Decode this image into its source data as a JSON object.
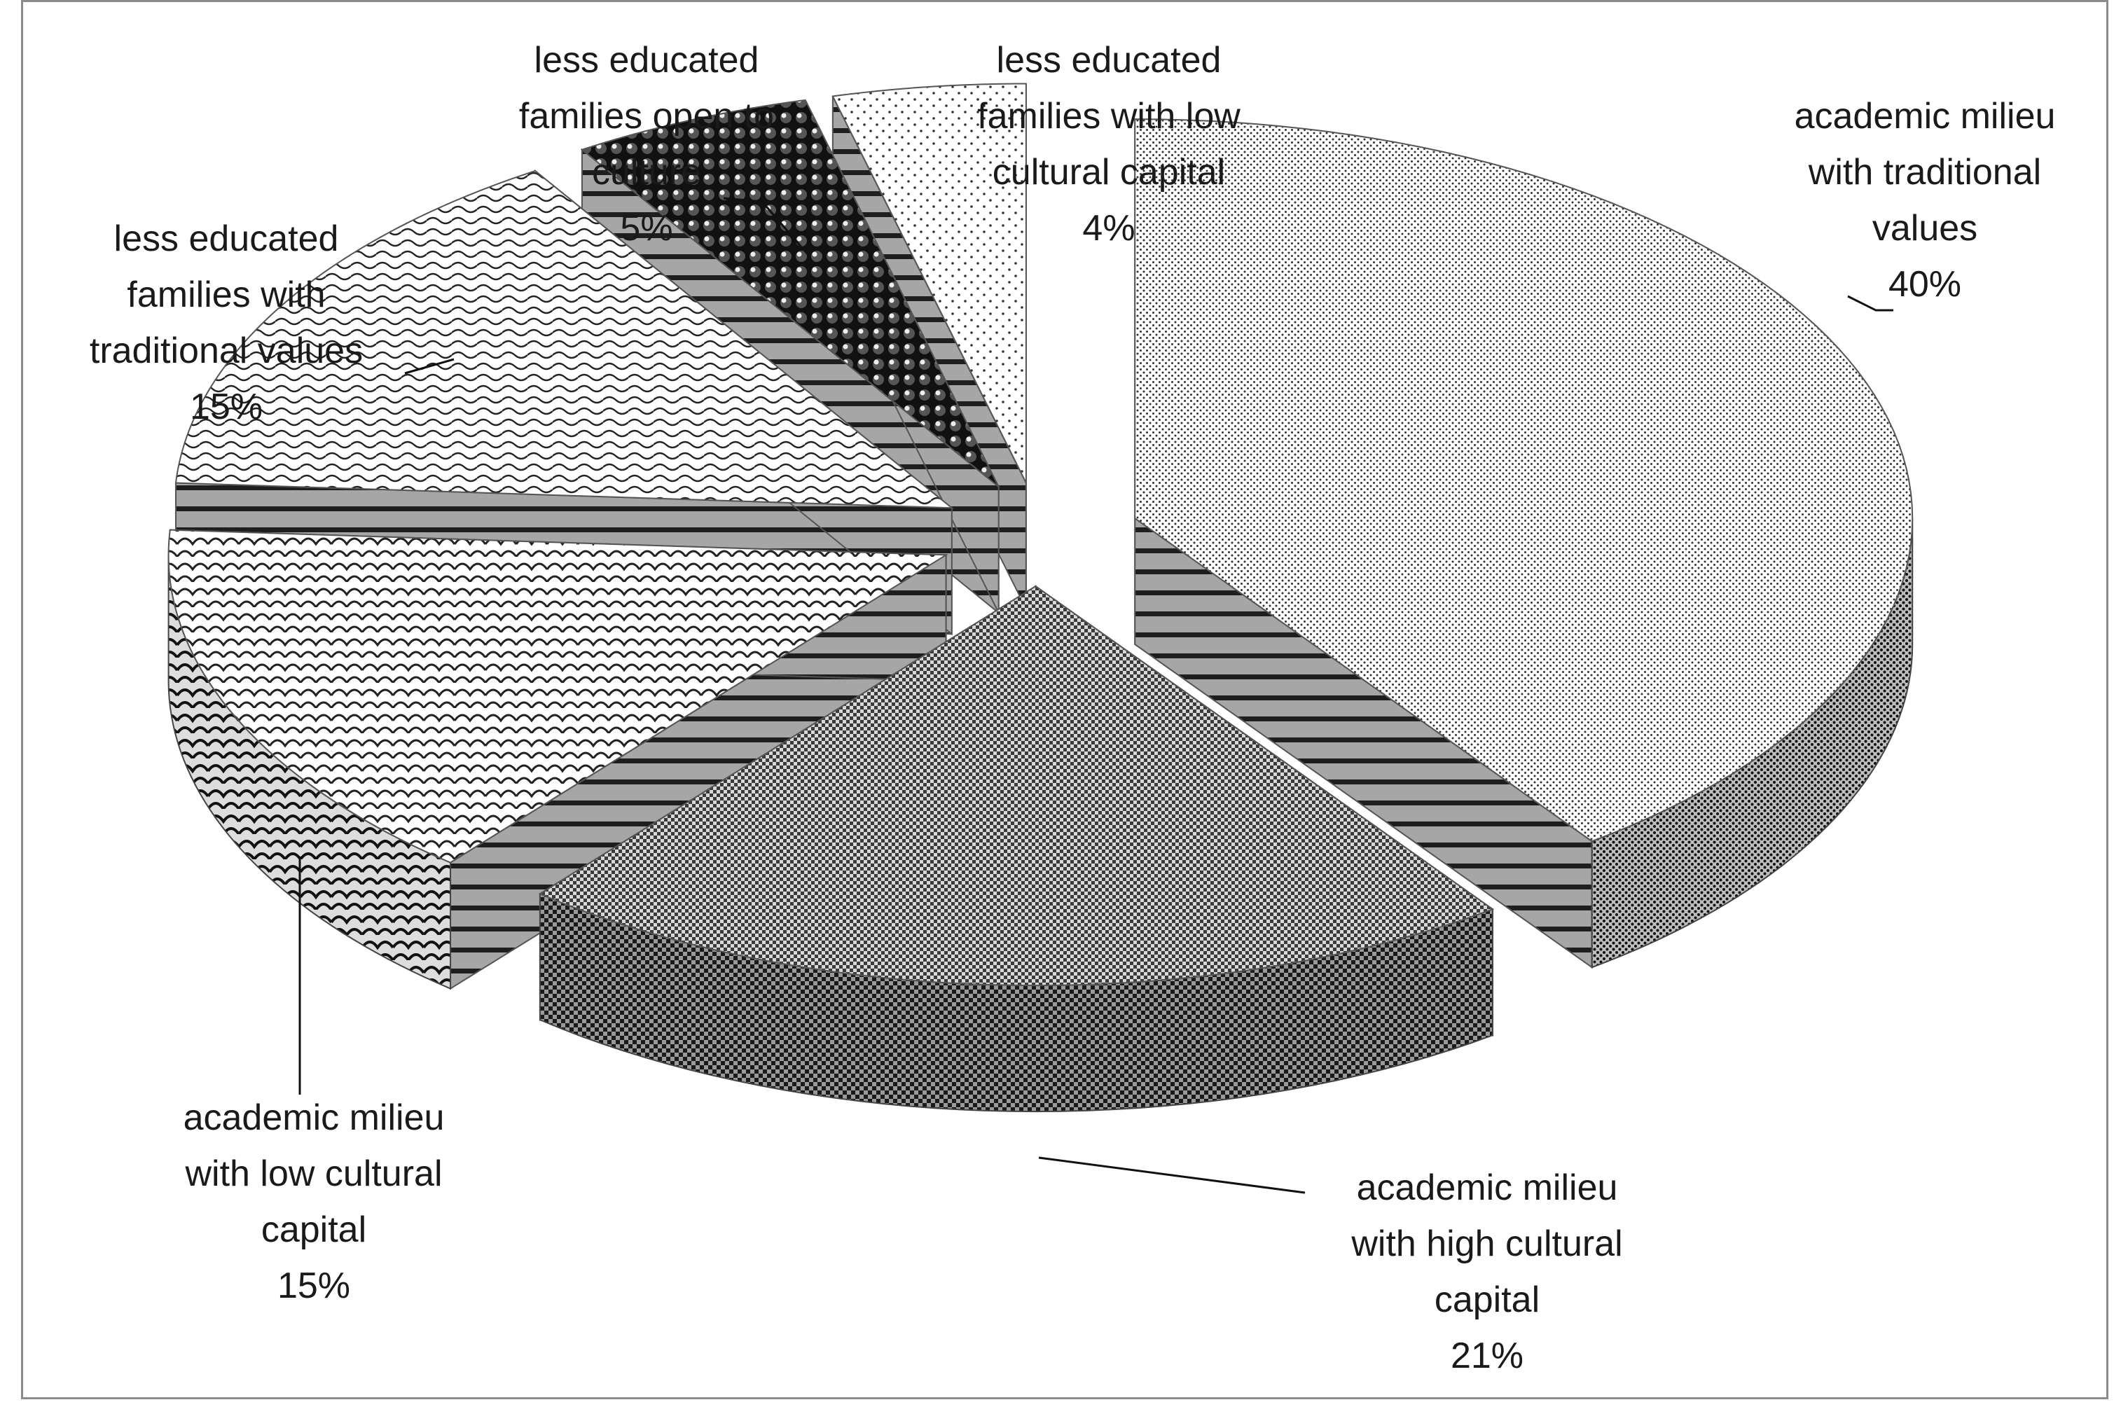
{
  "chart_data": {
    "type": "pie",
    "title": "",
    "slices": [
      {
        "label": "academic milieu with traditional values",
        "value": 40,
        "value_label": "40%",
        "pattern": "fine-dots"
      },
      {
        "label": "academic milieu with high cultural capital",
        "value": 21,
        "value_label": "21%",
        "pattern": "checker"
      },
      {
        "label": "academic milieu with low cultural capital",
        "value": 15,
        "value_label": "15%",
        "pattern": "scales"
      },
      {
        "label": "less educated families with traditional values",
        "value": 15,
        "value_label": "15%",
        "pattern": "waves"
      },
      {
        "label": "less educated families open to culture",
        "value": 5,
        "value_label": "5%",
        "pattern": "spheres"
      },
      {
        "label": "less educated families with low cultural capital",
        "value": 4,
        "value_label": "4%",
        "pattern": "sparse-dots"
      }
    ],
    "exploded": true,
    "three_d": true,
    "legend": "none",
    "colors": {
      "side": "#a6a6a6",
      "stripe": "#1e1e1e",
      "frame": "#8c8c8c"
    }
  }
}
